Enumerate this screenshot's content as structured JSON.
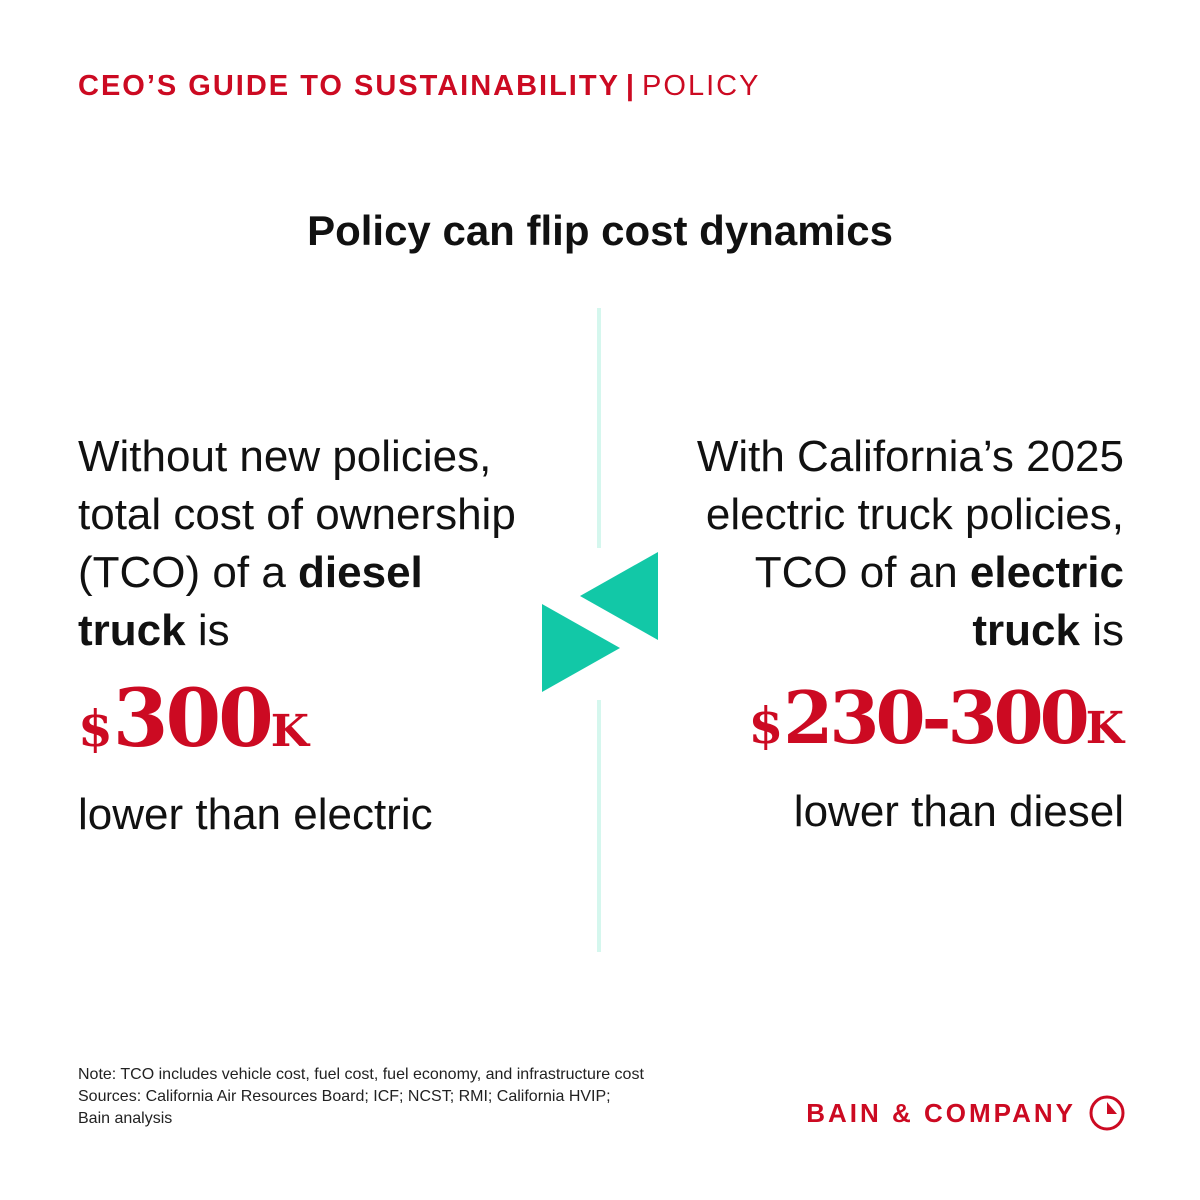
{
  "header": {
    "series": "CEO’S GUIDE TO SUSTAINABILITY",
    "separator": "|",
    "section": "POLICY"
  },
  "headline": "Policy can flip cost dynamics",
  "left_panel": {
    "lead_1": "Without new policies, total cost of ownership (TCO) of a ",
    "emphasis": "diesel truck",
    "lead_2": " is",
    "currency": "$",
    "amount": "300",
    "unit": "K",
    "tail": "lower than electric"
  },
  "right_panel": {
    "lead_1": "With California’s 2025 electric truck policies, TCO of an ",
    "emphasis": "electric truck",
    "lead_2": " is",
    "currency": "$",
    "amount": "230-300",
    "unit": "K",
    "tail": "lower than diesel"
  },
  "footnote": {
    "note": "Note: TCO includes vehicle cost, fuel cost, fuel economy, and infrastructure cost",
    "sources_1": "Sources: California Air Resources Board; ICF; NCST; RMI; California HVIP;",
    "sources_2": "Bain analysis"
  },
  "brand": {
    "name": "BAIN & COMPANY",
    "logo_icon": "bain-logo-icon"
  },
  "colors": {
    "accent_red": "#cc0a22",
    "accent_teal": "#12c8a7",
    "divider": "#d5f7ee"
  }
}
